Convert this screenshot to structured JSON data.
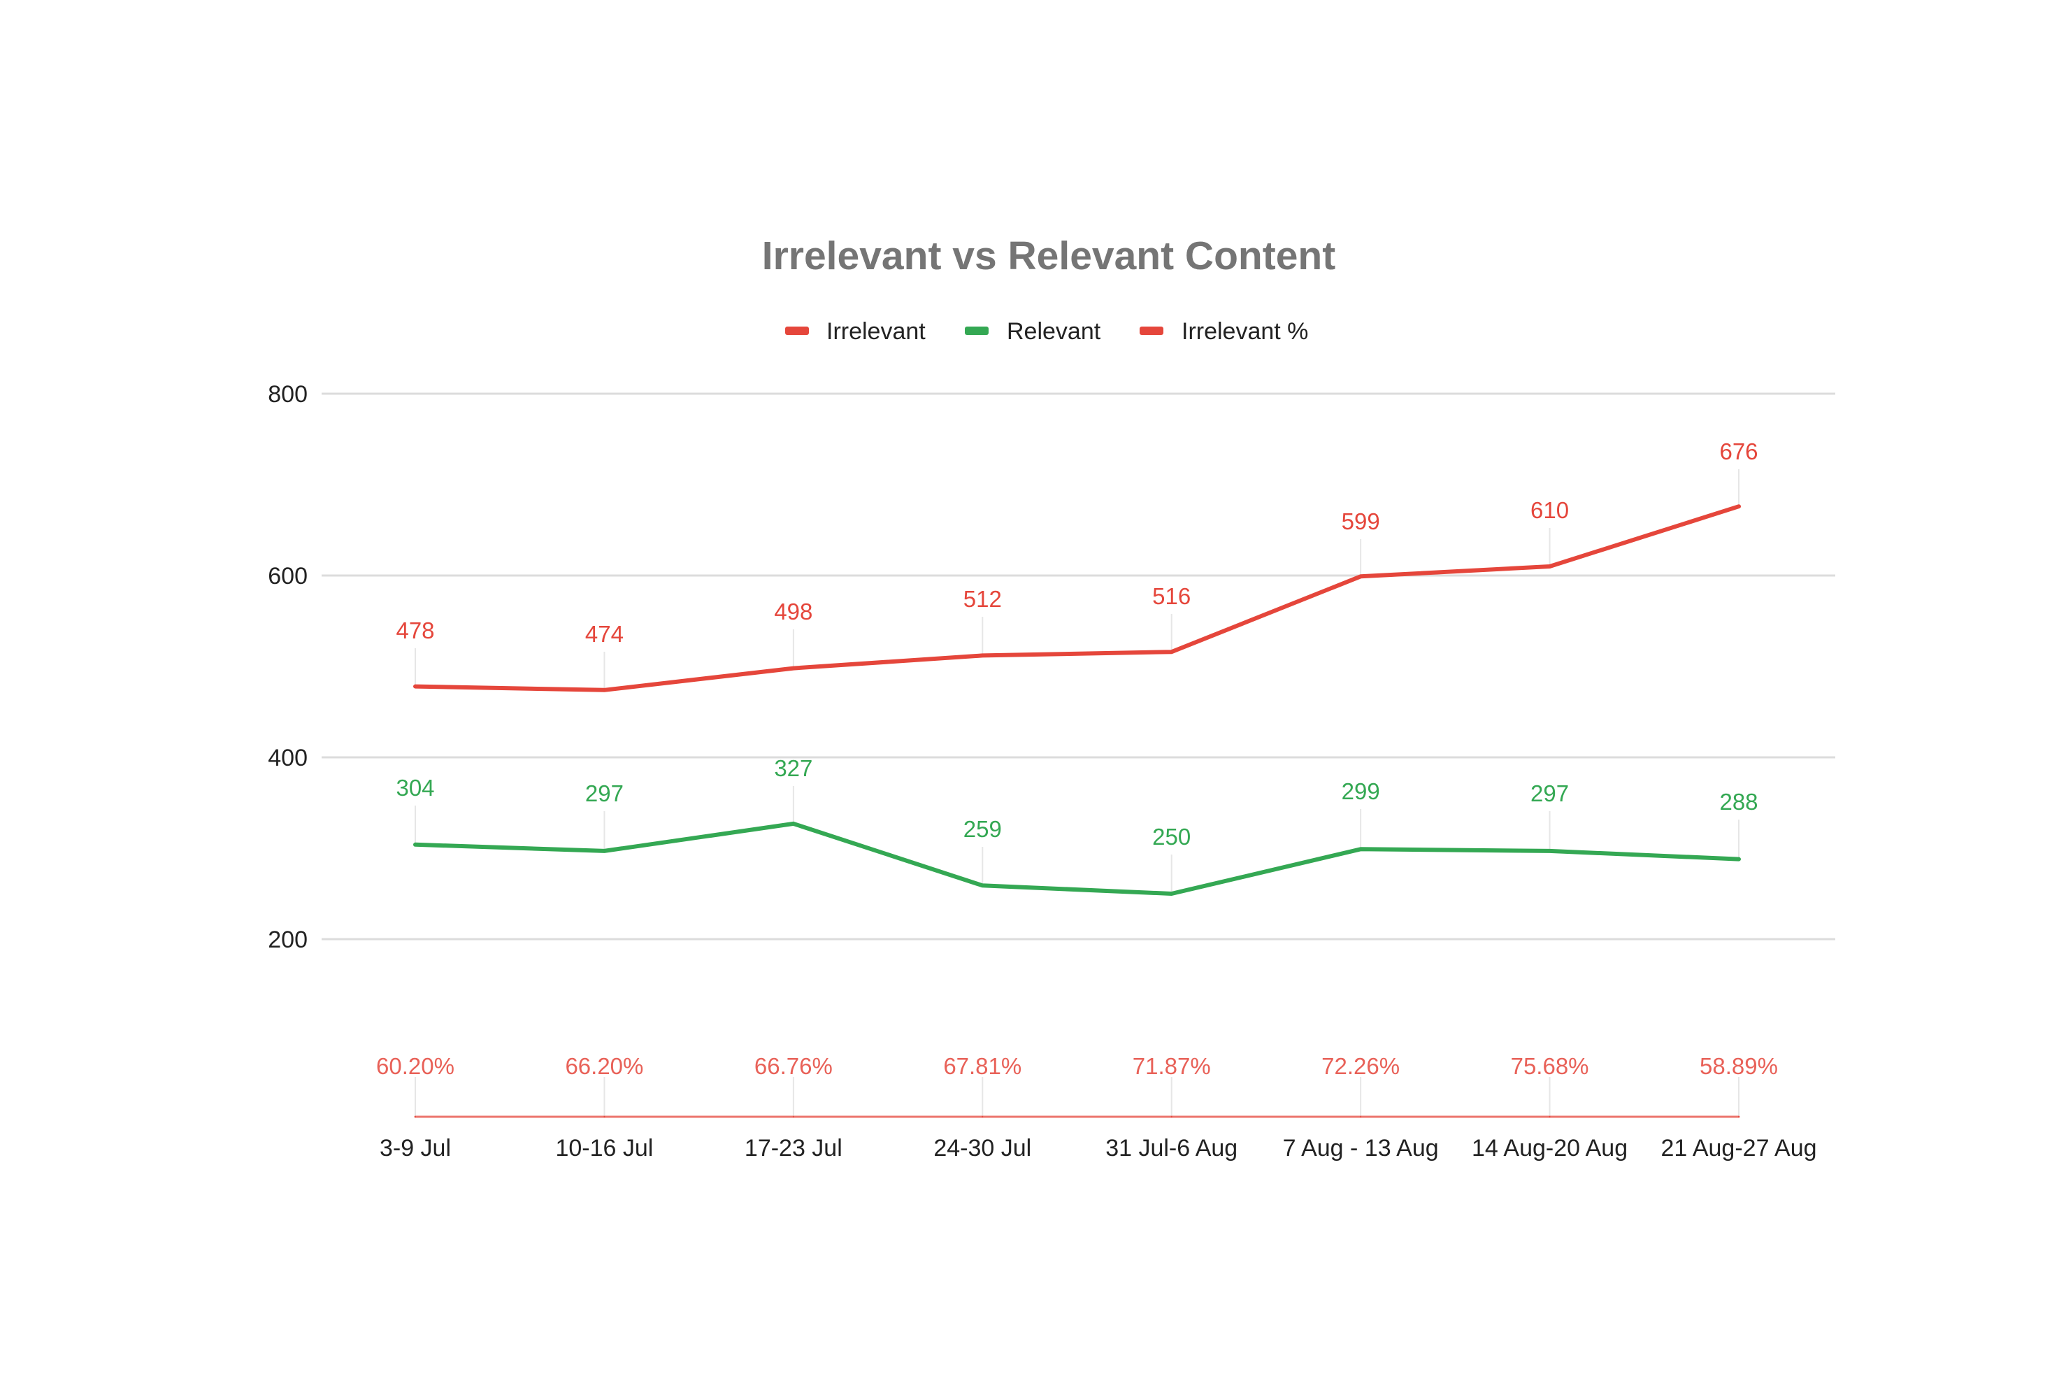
{
  "chart_data": {
    "type": "line",
    "title": "Irrelevant vs Relevant Content",
    "xlabel": "",
    "ylabel": "",
    "ylim": [
      0,
      800
    ],
    "yticks": [
      200,
      400,
      600,
      800
    ],
    "grid": true,
    "legend_position": "top-center",
    "categories": [
      "3-9 Jul",
      "10-16 Jul",
      "17-23 Jul",
      "24-30 Jul",
      "31 Jul-6 Aug",
      "7 Aug - 13 Aug",
      "14 Aug-20 Aug",
      "21 Aug-27 Aug"
    ],
    "series": [
      {
        "name": "Irrelevant",
        "color": "#e5463b",
        "values": [
          478,
          474,
          498,
          512,
          516,
          599,
          610,
          676
        ],
        "labels": [
          "478",
          "474",
          "498",
          "512",
          "516",
          "599",
          "610",
          "676"
        ]
      },
      {
        "name": "Relevant",
        "color": "#34a853",
        "values": [
          304,
          297,
          327,
          259,
          250,
          299,
          297,
          288
        ],
        "labels": [
          "304",
          "297",
          "327",
          "259",
          "250",
          "299",
          "297",
          "288"
        ]
      },
      {
        "name": "Irrelevant %",
        "color": "#e5463b",
        "values": [
          60.2,
          66.2,
          66.76,
          67.81,
          71.87,
          72.26,
          75.68,
          58.89
        ],
        "labels": [
          "60.20%",
          "66.20%",
          "66.76%",
          "67.81%",
          "71.87%",
          "72.26%",
          "75.68%",
          "58.89%"
        ]
      }
    ]
  }
}
